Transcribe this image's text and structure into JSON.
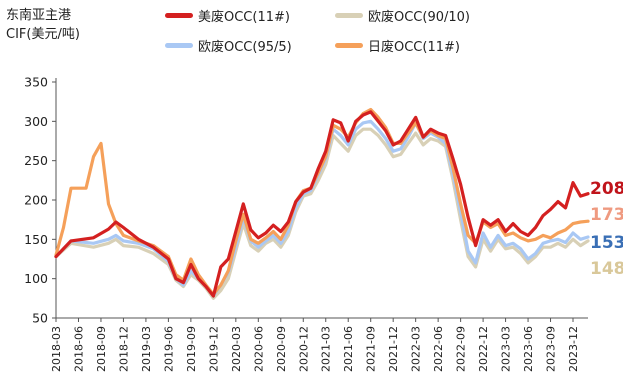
{
  "chart_data": {
    "type": "line",
    "ylabel_lines": [
      "东南亚主港",
      "CIF(美元/吨)"
    ],
    "ylim": [
      50,
      350
    ],
    "yticks": [
      50,
      100,
      150,
      200,
      250,
      300,
      350
    ],
    "xlim": [
      "2018-03",
      "2024-02"
    ],
    "xticks": [
      "2018-03",
      "2018-06",
      "2018-09",
      "2018-12",
      "2019-03",
      "2019-06",
      "2019-09",
      "2019-12",
      "2020-03",
      "2020-06",
      "2020-09",
      "2020-12",
      "2021-03",
      "2021-06",
      "2021-09",
      "2021-12",
      "2022-03",
      "2022-06",
      "2022-09",
      "2022-12",
      "2023-03",
      "2023-06",
      "2023-09",
      "2023-12"
    ],
    "legend_placement": "top",
    "series": [
      {
        "name": "美废OCC(11#)",
        "color": "#d42020",
        "end_label": "208",
        "end_label_color": "#c0141b",
        "points": [
          [
            "2018-03",
            128
          ],
          [
            "2018-05",
            148
          ],
          [
            "2018-08",
            152
          ],
          [
            "2018-10",
            163
          ],
          [
            "2018-11",
            172
          ],
          [
            "2018-12",
            165
          ],
          [
            "2019-02",
            150
          ],
          [
            "2019-04",
            140
          ],
          [
            "2019-06",
            125
          ],
          [
            "2019-07",
            100
          ],
          [
            "2019-08",
            95
          ],
          [
            "2019-09",
            118
          ],
          [
            "2019-10",
            100
          ],
          [
            "2019-11",
            90
          ],
          [
            "2019-12",
            78
          ],
          [
            "2020-01",
            115
          ],
          [
            "2020-02",
            125
          ],
          [
            "2020-03",
            160
          ],
          [
            "2020-04",
            195
          ],
          [
            "2020-05",
            162
          ],
          [
            "2020-06",
            152
          ],
          [
            "2020-07",
            158
          ],
          [
            "2020-08",
            168
          ],
          [
            "2020-09",
            160
          ],
          [
            "2020-10",
            172
          ],
          [
            "2020-11",
            198
          ],
          [
            "2020-12",
            210
          ],
          [
            "2021-01",
            215
          ],
          [
            "2021-02",
            240
          ],
          [
            "2021-03",
            262
          ],
          [
            "2021-04",
            302
          ],
          [
            "2021-05",
            298
          ],
          [
            "2021-06",
            275
          ],
          [
            "2021-07",
            300
          ],
          [
            "2021-08",
            308
          ],
          [
            "2021-09",
            312
          ],
          [
            "2021-10",
            300
          ],
          [
            "2021-11",
            288
          ],
          [
            "2021-12",
            270
          ],
          [
            "2022-01",
            275
          ],
          [
            "2022-02",
            290
          ],
          [
            "2022-03",
            305
          ],
          [
            "2022-04",
            280
          ],
          [
            "2022-05",
            290
          ],
          [
            "2022-06",
            285
          ],
          [
            "2022-07",
            282
          ],
          [
            "2022-08",
            252
          ],
          [
            "2022-09",
            220
          ],
          [
            "2022-10",
            178
          ],
          [
            "2022-11",
            142
          ],
          [
            "2022-12",
            175
          ],
          [
            "2023-01",
            168
          ],
          [
            "2023-02",
            175
          ],
          [
            "2023-03",
            160
          ],
          [
            "2023-04",
            170
          ],
          [
            "2023-05",
            160
          ],
          [
            "2023-06",
            155
          ],
          [
            "2023-07",
            165
          ],
          [
            "2023-08",
            180
          ],
          [
            "2023-09",
            188
          ],
          [
            "2023-10",
            198
          ],
          [
            "2023-11",
            190
          ],
          [
            "2023-12",
            222
          ],
          [
            "2024-01",
            205
          ],
          [
            "2024-02",
            208
          ]
        ]
      },
      {
        "name": "欧废OCC(90/10)",
        "color": "#d8d0b6",
        "end_label": "148",
        "end_label_color": "#d9c89a",
        "points": [
          [
            "2018-03",
            128
          ],
          [
            "2018-05",
            145
          ],
          [
            "2018-08",
            140
          ],
          [
            "2018-10",
            145
          ],
          [
            "2018-11",
            150
          ],
          [
            "2018-12",
            142
          ],
          [
            "2019-02",
            140
          ],
          [
            "2019-04",
            132
          ],
          [
            "2019-06",
            118
          ],
          [
            "2019-07",
            98
          ],
          [
            "2019-08",
            90
          ],
          [
            "2019-09",
            105
          ],
          [
            "2019-10",
            98
          ],
          [
            "2019-11",
            88
          ],
          [
            "2019-12",
            75
          ],
          [
            "2020-01",
            85
          ],
          [
            "2020-02",
            100
          ],
          [
            "2020-03",
            135
          ],
          [
            "2020-04",
            170
          ],
          [
            "2020-05",
            142
          ],
          [
            "2020-06",
            135
          ],
          [
            "2020-07",
            145
          ],
          [
            "2020-08",
            150
          ],
          [
            "2020-09",
            140
          ],
          [
            "2020-10",
            155
          ],
          [
            "2020-11",
            185
          ],
          [
            "2020-12",
            205
          ],
          [
            "2021-01",
            208
          ],
          [
            "2021-02",
            225
          ],
          [
            "2021-03",
            245
          ],
          [
            "2021-04",
            282
          ],
          [
            "2021-05",
            272
          ],
          [
            "2021-06",
            262
          ],
          [
            "2021-07",
            282
          ],
          [
            "2021-08",
            290
          ],
          [
            "2021-09",
            290
          ],
          [
            "2021-10",
            282
          ],
          [
            "2021-11",
            270
          ],
          [
            "2021-12",
            255
          ],
          [
            "2022-01",
            258
          ],
          [
            "2022-02",
            272
          ],
          [
            "2022-03",
            285
          ],
          [
            "2022-04",
            270
          ],
          [
            "2022-05",
            278
          ],
          [
            "2022-06",
            275
          ],
          [
            "2022-07",
            268
          ],
          [
            "2022-08",
            225
          ],
          [
            "2022-09",
            175
          ],
          [
            "2022-10",
            128
          ],
          [
            "2022-11",
            115
          ],
          [
            "2022-12",
            150
          ],
          [
            "2023-01",
            135
          ],
          [
            "2023-02",
            150
          ],
          [
            "2023-03",
            138
          ],
          [
            "2023-04",
            140
          ],
          [
            "2023-05",
            132
          ],
          [
            "2023-06",
            120
          ],
          [
            "2023-07",
            128
          ],
          [
            "2023-08",
            140
          ],
          [
            "2023-09",
            140
          ],
          [
            "2023-10",
            145
          ],
          [
            "2023-11",
            140
          ],
          [
            "2023-12",
            150
          ],
          [
            "2024-01",
            142
          ],
          [
            "2024-02",
            148
          ]
        ]
      },
      {
        "name": "欧废OCC(95/5)",
        "color": "#a9c8f4",
        "end_label": "153",
        "end_label_color": "#3a6fb5",
        "points": [
          [
            "2018-03",
            128
          ],
          [
            "2018-05",
            148
          ],
          [
            "2018-08",
            145
          ],
          [
            "2018-10",
            150
          ],
          [
            "2018-11",
            155
          ],
          [
            "2018-12",
            148
          ],
          [
            "2019-02",
            145
          ],
          [
            "2019-04",
            138
          ],
          [
            "2019-06",
            122
          ],
          [
            "2019-07",
            100
          ],
          [
            "2019-08",
            92
          ],
          [
            "2019-09",
            110
          ],
          [
            "2019-10",
            100
          ],
          [
            "2019-11",
            90
          ],
          [
            "2019-12",
            78
          ],
          [
            "2020-01",
            92
          ],
          [
            "2020-02",
            108
          ],
          [
            "2020-03",
            140
          ],
          [
            "2020-04",
            178
          ],
          [
            "2020-05",
            148
          ],
          [
            "2020-06",
            140
          ],
          [
            "2020-07",
            148
          ],
          [
            "2020-08",
            155
          ],
          [
            "2020-09",
            145
          ],
          [
            "2020-10",
            160
          ],
          [
            "2020-11",
            190
          ],
          [
            "2020-12",
            208
          ],
          [
            "2021-01",
            212
          ],
          [
            "2021-02",
            232
          ],
          [
            "2021-03",
            252
          ],
          [
            "2021-04",
            290
          ],
          [
            "2021-05",
            282
          ],
          [
            "2021-06",
            270
          ],
          [
            "2021-07",
            290
          ],
          [
            "2021-08",
            298
          ],
          [
            "2021-09",
            300
          ],
          [
            "2021-10",
            290
          ],
          [
            "2021-11",
            278
          ],
          [
            "2021-12",
            262
          ],
          [
            "2022-01",
            265
          ],
          [
            "2022-02",
            280
          ],
          [
            "2022-03",
            298
          ],
          [
            "2022-04",
            278
          ],
          [
            "2022-05",
            285
          ],
          [
            "2022-06",
            280
          ],
          [
            "2022-07",
            272
          ],
          [
            "2022-08",
            232
          ],
          [
            "2022-09",
            185
          ],
          [
            "2022-10",
            135
          ],
          [
            "2022-11",
            120
          ],
          [
            "2022-12",
            158
          ],
          [
            "2023-01",
            140
          ],
          [
            "2023-02",
            155
          ],
          [
            "2023-03",
            142
          ],
          [
            "2023-04",
            145
          ],
          [
            "2023-05",
            138
          ],
          [
            "2023-06",
            125
          ],
          [
            "2023-07",
            132
          ],
          [
            "2023-08",
            145
          ],
          [
            "2023-09",
            148
          ],
          [
            "2023-10",
            150
          ],
          [
            "2023-11",
            146
          ],
          [
            "2023-12",
            158
          ],
          [
            "2024-01",
            150
          ],
          [
            "2024-02",
            153
          ]
        ]
      },
      {
        "name": "日废OCC(11#)",
        "color": "#f5a05a",
        "end_label": "173",
        "end_label_color": "#ef9a80",
        "points": [
          [
            "2018-03",
            130
          ],
          [
            "2018-04",
            165
          ],
          [
            "2018-05",
            215
          ],
          [
            "2018-06",
            215
          ],
          [
            "2018-07",
            215
          ],
          [
            "2018-08",
            255
          ],
          [
            "2018-09",
            272
          ],
          [
            "2018-10",
            195
          ],
          [
            "2018-11",
            170
          ],
          [
            "2018-12",
            155
          ],
          [
            "2019-02",
            148
          ],
          [
            "2019-04",
            142
          ],
          [
            "2019-06",
            128
          ],
          [
            "2019-07",
            105
          ],
          [
            "2019-08",
            98
          ],
          [
            "2019-09",
            125
          ],
          [
            "2019-10",
            105
          ],
          [
            "2019-11",
            92
          ],
          [
            "2019-12",
            80
          ],
          [
            "2020-01",
            92
          ],
          [
            "2020-02",
            110
          ],
          [
            "2020-03",
            148
          ],
          [
            "2020-04",
            182
          ],
          [
            "2020-05",
            150
          ],
          [
            "2020-06",
            145
          ],
          [
            "2020-07",
            152
          ],
          [
            "2020-08",
            160
          ],
          [
            "2020-09",
            150
          ],
          [
            "2020-10",
            168
          ],
          [
            "2020-11",
            198
          ],
          [
            "2020-12",
            212
          ],
          [
            "2021-01",
            215
          ],
          [
            "2021-02",
            235
          ],
          [
            "2021-03",
            255
          ],
          [
            "2021-04",
            295
          ],
          [
            "2021-05",
            290
          ],
          [
            "2021-06",
            280
          ],
          [
            "2021-07",
            298
          ],
          [
            "2021-08",
            310
          ],
          [
            "2021-09",
            315
          ],
          [
            "2021-10",
            305
          ],
          [
            "2021-11",
            292
          ],
          [
            "2021-12",
            272
          ],
          [
            "2022-01",
            272
          ],
          [
            "2022-02",
            285
          ],
          [
            "2022-03",
            298
          ],
          [
            "2022-04",
            280
          ],
          [
            "2022-05",
            288
          ],
          [
            "2022-06",
            282
          ],
          [
            "2022-07",
            278
          ],
          [
            "2022-08",
            240
          ],
          [
            "2022-09",
            195
          ],
          [
            "2022-10",
            155
          ],
          [
            "2022-11",
            145
          ],
          [
            "2022-12",
            172
          ],
          [
            "2023-01",
            165
          ],
          [
            "2023-02",
            170
          ],
          [
            "2023-03",
            155
          ],
          [
            "2023-04",
            158
          ],
          [
            "2023-05",
            152
          ],
          [
            "2023-06",
            148
          ],
          [
            "2023-07",
            150
          ],
          [
            "2023-08",
            155
          ],
          [
            "2023-09",
            152
          ],
          [
            "2023-10",
            158
          ],
          [
            "2023-11",
            162
          ],
          [
            "2023-12",
            170
          ],
          [
            "2024-01",
            172
          ],
          [
            "2024-02",
            173
          ]
        ]
      }
    ]
  }
}
